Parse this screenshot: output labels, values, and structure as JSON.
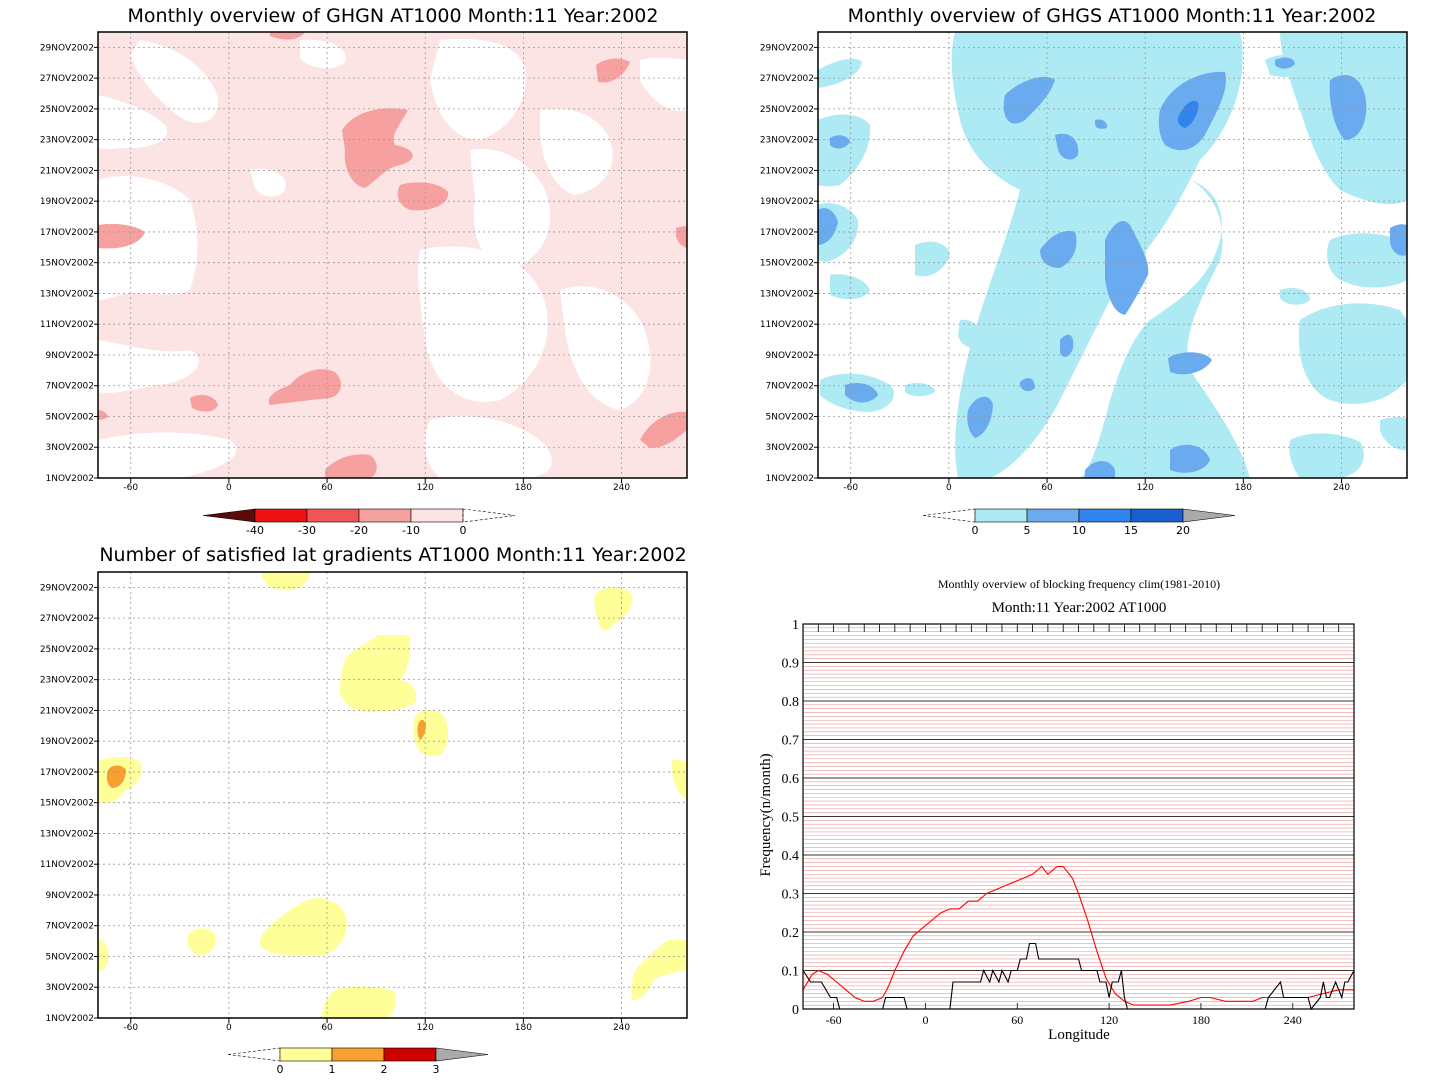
{
  "chart_data": [
    {
      "type": "heatmap",
      "title": "Monthly overview of GHGN AT1000 Month:11 Year:2002",
      "xticks": [
        "-60",
        "0",
        "60",
        "120",
        "180",
        "240"
      ],
      "xtick_values": [
        -60,
        0,
        60,
        120,
        180,
        240
      ],
      "xlim": [
        -80,
        280
      ],
      "yticks": [
        "1NOV2002",
        "3NOV2002",
        "5NOV2002",
        "7NOV2002",
        "9NOV2002",
        "11NOV2002",
        "13NOV2002",
        "15NOV2002",
        "17NOV2002",
        "19NOV2002",
        "21NOV2002",
        "23NOV2002",
        "25NOV2002",
        "27NOV2002",
        "29NOV2002"
      ],
      "ylim": [
        1,
        30
      ],
      "grid": true,
      "colorbar": {
        "labels": [
          "-40",
          "-30",
          "-20",
          "-10",
          "0"
        ],
        "colors": [
          "#5a0a0a",
          "#ee1111",
          "#f25555",
          "#f7a0a0",
          "#fde4e4"
        ],
        "end_open": "right"
      }
    },
    {
      "type": "heatmap",
      "title": "Monthly overview of GHGS AT1000 Month:11 Year:2002",
      "xticks": [
        "-60",
        "0",
        "60",
        "120",
        "180",
        "240"
      ],
      "xtick_values": [
        -60,
        0,
        60,
        120,
        180,
        240
      ],
      "xlim": [
        -80,
        280
      ],
      "yticks": [
        "1NOV2002",
        "3NOV2002",
        "5NOV2002",
        "7NOV2002",
        "9NOV2002",
        "11NOV2002",
        "13NOV2002",
        "15NOV2002",
        "17NOV2002",
        "19NOV2002",
        "21NOV2002",
        "23NOV2002",
        "25NOV2002",
        "27NOV2002",
        "29NOV2002"
      ],
      "ylim": [
        1,
        30
      ],
      "grid": true,
      "colorbar": {
        "labels": [
          "0",
          "5",
          "10",
          "15",
          "20"
        ],
        "colors": [
          "#aeeaf4",
          "#6aabf0",
          "#2f85ec",
          "#1a5fcf",
          "#aaaaaa"
        ],
        "end_open": "left"
      }
    },
    {
      "type": "heatmap",
      "title": "Number of satisfied lat gradients AT1000 Month:11 Year:2002",
      "xticks": [
        "-60",
        "0",
        "60",
        "120",
        "180",
        "240"
      ],
      "xtick_values": [
        -60,
        0,
        60,
        120,
        180,
        240
      ],
      "xlim": [
        -80,
        280
      ],
      "yticks": [
        "1NOV2002",
        "3NOV2002",
        "5NOV2002",
        "7NOV2002",
        "9NOV2002",
        "11NOV2002",
        "13NOV2002",
        "15NOV2002",
        "17NOV2002",
        "19NOV2002",
        "21NOV2002",
        "23NOV2002",
        "25NOV2002",
        "27NOV2002",
        "29NOV2002"
      ],
      "ylim": [
        1,
        30
      ],
      "grid": true,
      "colorbar": {
        "labels": [
          "0",
          "1",
          "2",
          "3"
        ],
        "colors": [
          "#ffff99",
          "#f5a030",
          "#cc0000",
          "#aaaaaa"
        ],
        "end_open": "left"
      }
    },
    {
      "type": "line",
      "title": "Monthly overview of blocking frequency clim(1981-2010)",
      "subtitle": "Month:11 Year:2002  AT1000",
      "xlabel": "Longitude",
      "ylabel": "Frequency(n/month)",
      "xlim": [
        -80,
        280
      ],
      "ylim": [
        0,
        1
      ],
      "xticks": [
        "-60",
        "0",
        "60",
        "120",
        "180",
        "240"
      ],
      "xtick_values": [
        -60,
        0,
        60,
        120,
        180,
        240
      ],
      "yticks": [
        "0",
        "0.1",
        "0.2",
        "0.3",
        "0.4",
        "0.5",
        "0.6",
        "0.7",
        "0.8",
        "0.9",
        "1"
      ],
      "ytick_values": [
        0,
        0.1,
        0.2,
        0.3,
        0.4,
        0.5,
        0.6,
        0.7,
        0.8,
        0.9,
        1
      ],
      "grid": true,
      "series": [
        {
          "color": "#ff0000",
          "x": [
            -80,
            -74,
            -70,
            -64,
            -58,
            -52,
            -46,
            -40,
            -34,
            -28,
            -24,
            -20,
            -14,
            -8,
            -2,
            4,
            10,
            16,
            22,
            28,
            34,
            40,
            46,
            52,
            58,
            64,
            70,
            76,
            80,
            86,
            90,
            96,
            100,
            106,
            112,
            118,
            124,
            130,
            136,
            142,
            148,
            160,
            172,
            180,
            186,
            196,
            204,
            214,
            220,
            230,
            240,
            250,
            260,
            270,
            280
          ],
          "y": [
            0.05,
            0.09,
            0.1,
            0.09,
            0.07,
            0.05,
            0.03,
            0.02,
            0.02,
            0.03,
            0.06,
            0.1,
            0.15,
            0.19,
            0.21,
            0.23,
            0.25,
            0.26,
            0.26,
            0.28,
            0.28,
            0.3,
            0.31,
            0.32,
            0.33,
            0.34,
            0.35,
            0.37,
            0.35,
            0.37,
            0.37,
            0.34,
            0.3,
            0.23,
            0.15,
            0.08,
            0.04,
            0.02,
            0.01,
            0.01,
            0.01,
            0.01,
            0.02,
            0.03,
            0.03,
            0.02,
            0.02,
            0.02,
            0.03,
            0.03,
            0.03,
            0.03,
            0.04,
            0.05,
            0.05
          ]
        },
        {
          "color": "#000000",
          "x": [
            -80,
            -75,
            -68,
            -62,
            -58,
            -56,
            -35,
            -28,
            -26,
            -14,
            -12,
            16,
            18,
            28,
            36,
            38,
            42,
            44,
            48,
            50,
            54,
            56,
            60,
            62,
            66,
            68,
            72,
            74,
            100,
            102,
            112,
            114,
            118,
            120,
            122,
            126,
            128,
            130,
            132,
            222,
            224,
            232,
            234,
            240,
            242,
            250,
            252,
            258,
            260,
            262,
            264,
            268,
            272,
            274,
            276,
            280
          ],
          "y": [
            0.1,
            0.07,
            0.07,
            0.03,
            0.03,
            0.0,
            0.0,
            0.0,
            0.03,
            0.03,
            0.0,
            0.0,
            0.07,
            0.07,
            0.07,
            0.1,
            0.07,
            0.1,
            0.07,
            0.1,
            0.07,
            0.1,
            0.1,
            0.13,
            0.13,
            0.17,
            0.17,
            0.13,
            0.13,
            0.1,
            0.1,
            0.07,
            0.07,
            0.03,
            0.07,
            0.07,
            0.1,
            0.03,
            0.0,
            0.0,
            0.03,
            0.07,
            0.03,
            0.03,
            0.03,
            0.03,
            0.0,
            0.03,
            0.07,
            0.03,
            0.03,
            0.07,
            0.03,
            0.07,
            0.07,
            0.1
          ]
        }
      ]
    }
  ]
}
